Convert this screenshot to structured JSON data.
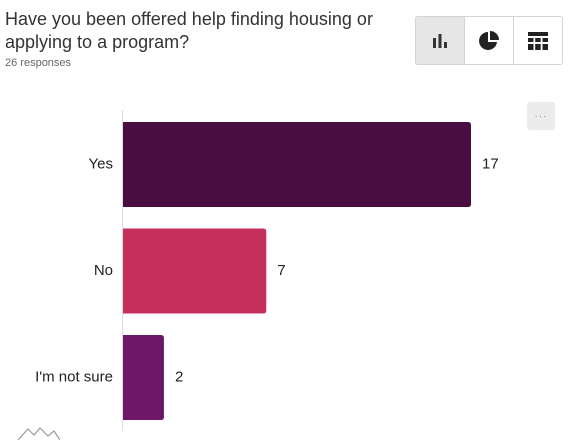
{
  "question": {
    "title": "Have you been offered help finding housing or applying to a program?",
    "responses": "26 responses"
  },
  "view_switch": {
    "buttons": [
      {
        "icon": "bar-chart-icon",
        "active": true
      },
      {
        "icon": "pie-chart-icon",
        "active": false
      },
      {
        "icon": "table-icon",
        "active": false
      }
    ]
  },
  "more_button": {
    "label": "···"
  },
  "chart_data": {
    "type": "bar",
    "orientation": "horizontal",
    "categories": [
      "Yes",
      "No",
      "I'm not sure"
    ],
    "values": [
      17,
      7,
      2
    ],
    "colors": [
      "#4a0d42",
      "#c42f5c",
      "#6e1768"
    ],
    "xlim": [
      0,
      17
    ],
    "grid": false,
    "legend": "none"
  }
}
